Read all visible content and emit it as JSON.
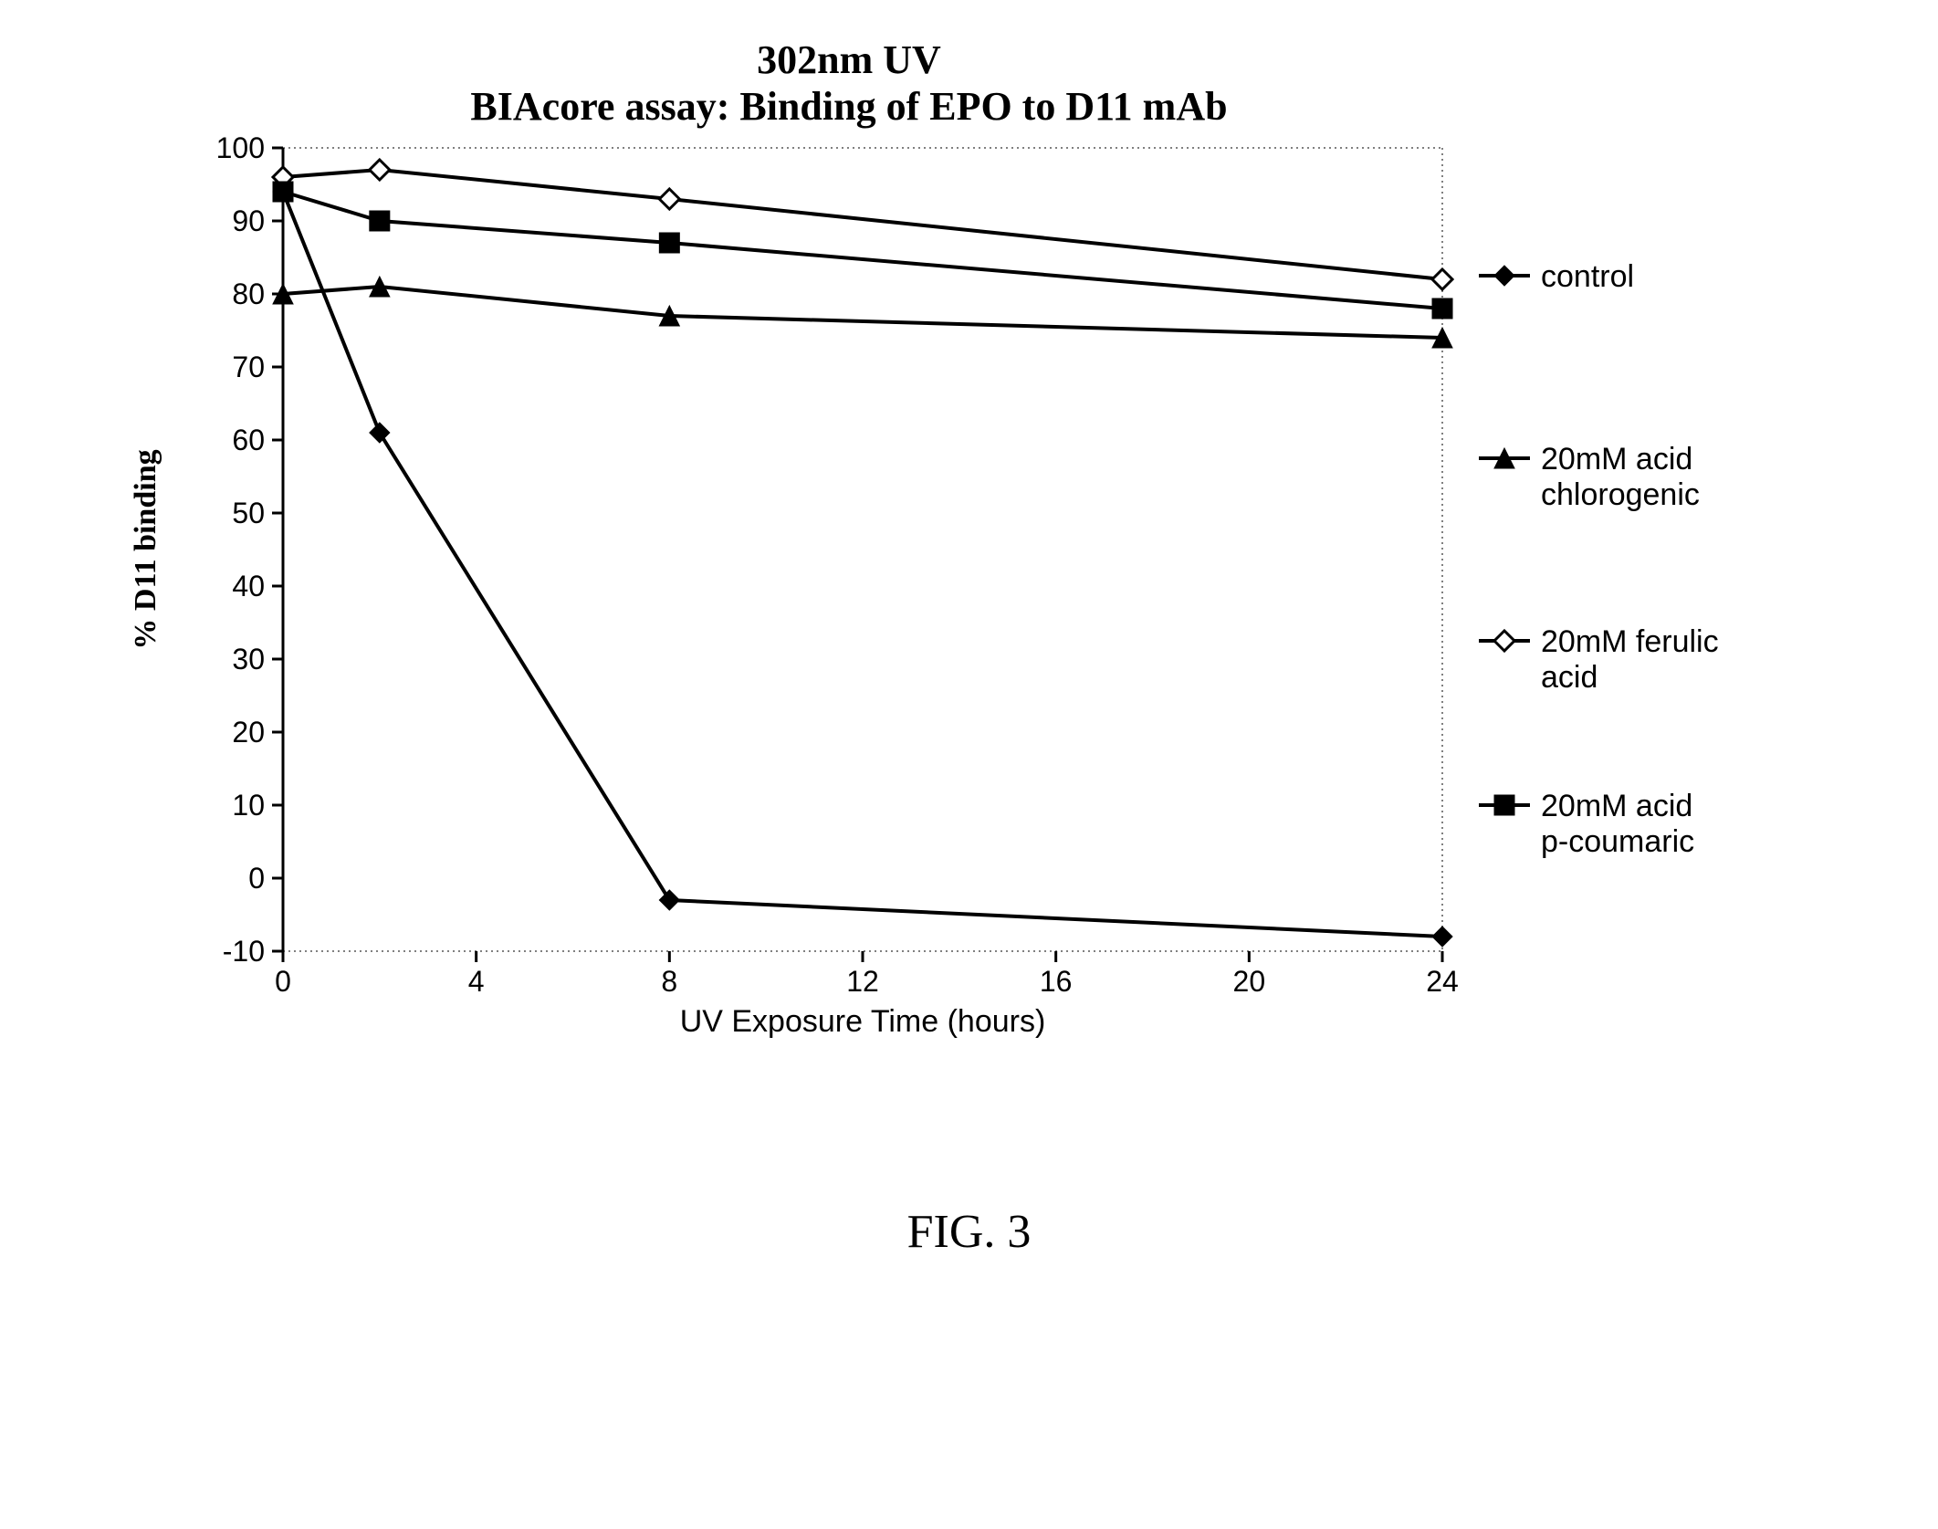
{
  "chart": {
    "type": "line",
    "title_line1": "302nm UV",
    "title_line2": "BIAcore assay:   Binding of EPO to D11 mAb",
    "title_fontsize": 44,
    "title_fontweight": "bold",
    "xlabel": "UV Exposure Time (hours)",
    "ylabel": "% D11 binding",
    "xlabel_fontsize": 34,
    "ylabel_fontsize": 34,
    "ylabel_fontweight": "bold",
    "tick_fontsize": 32,
    "x_ticks": [
      0,
      4,
      8,
      12,
      16,
      20,
      24
    ],
    "y_ticks": [
      -10,
      0,
      10,
      20,
      30,
      40,
      50,
      60,
      70,
      80,
      90,
      100
    ],
    "xlim": [
      0,
      24
    ],
    "ylim": [
      -10,
      100
    ],
    "plot_border_color": "#808080",
    "plot_border_dash": "2,4",
    "plot_border_width": 2,
    "background_color": "#ffffff",
    "line_width": 4,
    "marker_size": 11,
    "series": [
      {
        "key": "control",
        "label": "control",
        "color": "#000000",
        "marker": "diamond-filled",
        "x": [
          0,
          2,
          8,
          24
        ],
        "y": [
          94,
          61,
          -3,
          -8
        ]
      },
      {
        "key": "chlorogenic",
        "label": "20mM chlorogenic acid",
        "color": "#000000",
        "marker": "triangle-filled",
        "x": [
          0,
          2,
          8,
          24
        ],
        "y": [
          80,
          81,
          77,
          74
        ]
      },
      {
        "key": "ferulic",
        "label": "20mM ferulic acid",
        "color": "#000000",
        "marker": "diamond-open",
        "x": [
          0,
          2,
          8,
          24
        ],
        "y": [
          96,
          97,
          93,
          82
        ]
      },
      {
        "key": "coumaric",
        "label": "20mM p-coumaric acid",
        "color": "#000000",
        "marker": "square-filled",
        "x": [
          0,
          2,
          8,
          24
        ],
        "y": [
          94,
          90,
          87,
          78
        ]
      }
    ],
    "legend": {
      "fontsize": 34,
      "items": [
        {
          "series": "control",
          "label": "control"
        },
        {
          "series": "chlorogenic",
          "label": "20mM chlorogenic acid"
        },
        {
          "series": "ferulic",
          "label": "20mM ferulic acid"
        },
        {
          "series": "coumaric",
          "label": "20mM p-coumaric acid"
        }
      ]
    }
  },
  "figure_caption": "FIG. 3"
}
